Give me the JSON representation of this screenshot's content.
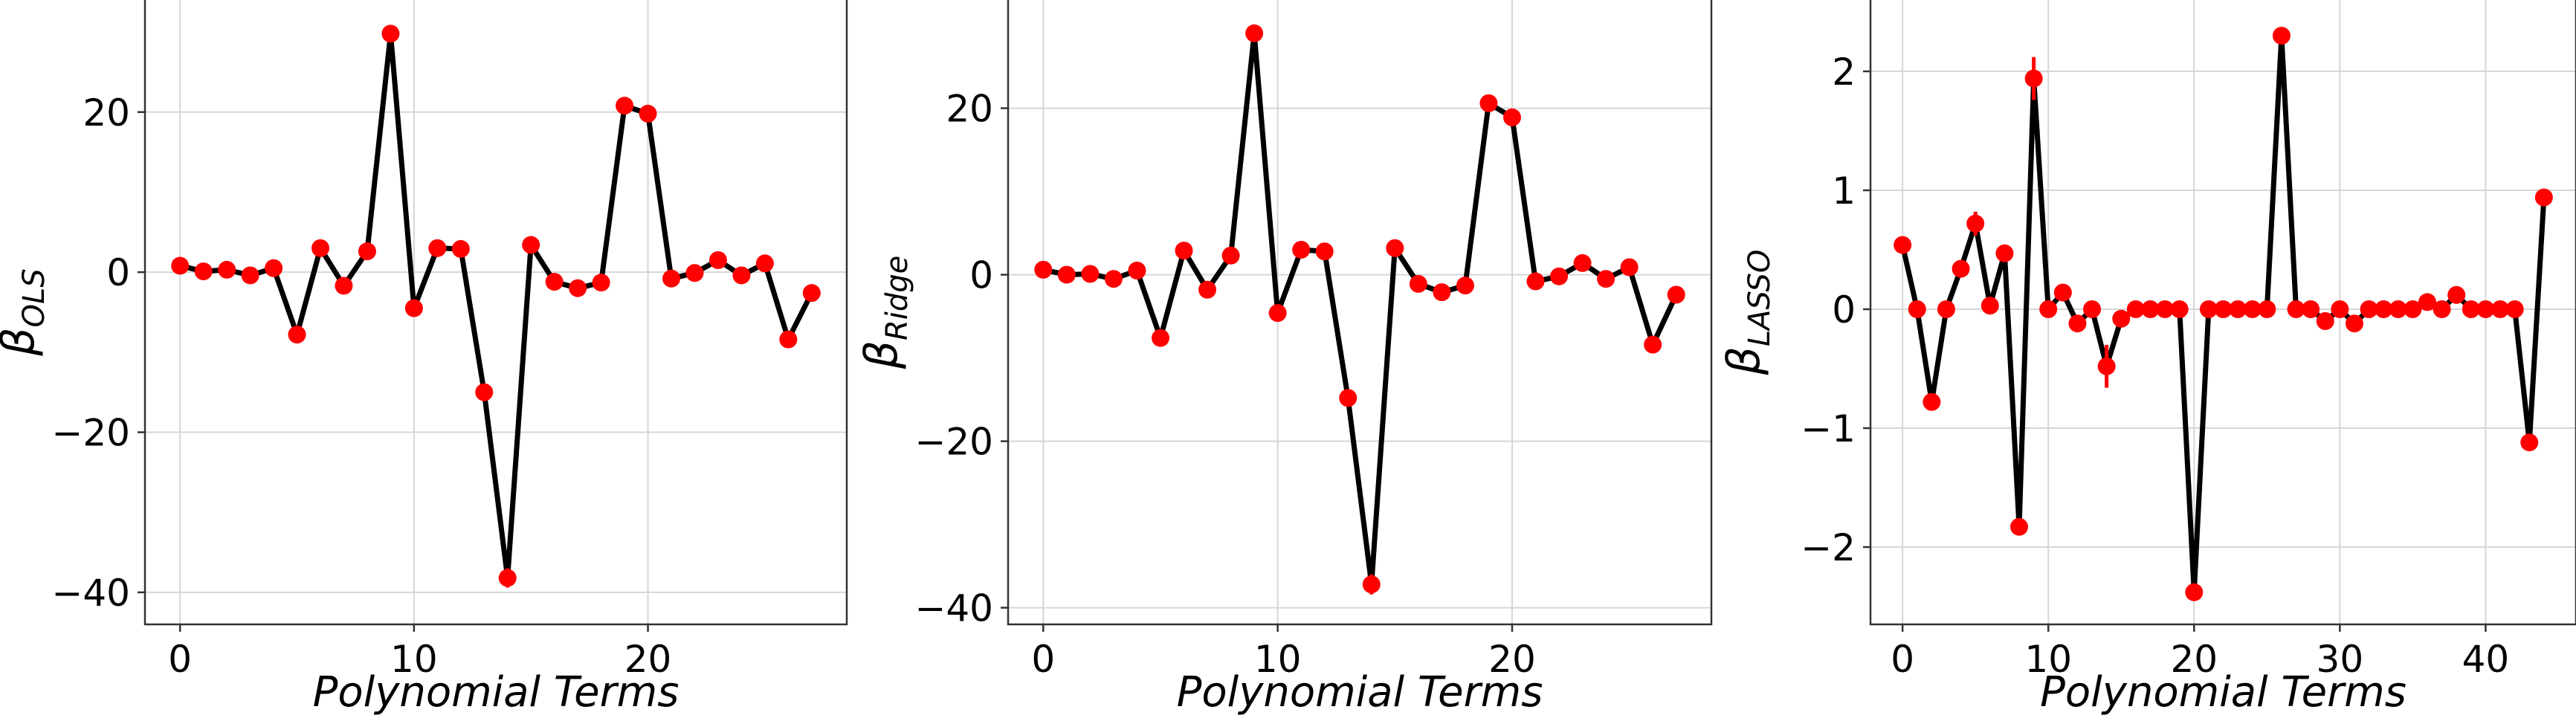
{
  "chart_data": [
    {
      "type": "line",
      "xlabel": "Polynomial Terms",
      "ylabel": {
        "base": "β",
        "sub": "OLS"
      },
      "xlim": [
        -1.5,
        28.5
      ],
      "ylim": [
        -44,
        34
      ],
      "xticks": [
        0,
        10,
        20
      ],
      "yticks": [
        -40,
        -20,
        0,
        20
      ],
      "tick_labels_x": [
        "0",
        "10",
        "20"
      ],
      "tick_labels_y": [
        "−40",
        "−20",
        "0",
        "20"
      ],
      "grid": true,
      "line_color": "#000000",
      "marker_color": "#ff0000",
      "series": [
        {
          "x": [
            0,
            1,
            2,
            3,
            4,
            5,
            6,
            7,
            8,
            9,
            10,
            11,
            12,
            13,
            14,
            15,
            16,
            17,
            18,
            19,
            20,
            21,
            22,
            23,
            24,
            25,
            26,
            27
          ],
          "values": [
            0.8,
            0.1,
            0.3,
            -0.4,
            0.5,
            -7.8,
            3.0,
            -1.7,
            2.6,
            29.8,
            -4.5,
            3.0,
            2.9,
            -15.0,
            -38.2,
            3.4,
            -1.2,
            -2.0,
            -1.3,
            20.8,
            19.8,
            -0.8,
            -0.1,
            1.5,
            -0.4,
            1.1,
            -8.4,
            -2.6
          ],
          "errors": [
            0,
            0,
            0,
            0,
            0,
            0,
            0,
            0,
            0,
            0,
            0.8,
            0,
            0,
            0,
            1.2,
            0,
            0,
            0,
            0,
            0,
            0,
            0,
            0,
            0,
            0,
            0,
            0,
            0
          ]
        }
      ]
    },
    {
      "type": "line",
      "xlabel": "Polynomial Terms",
      "ylabel": {
        "base": "β",
        "sub": "Ridge"
      },
      "xlim": [
        -1.5,
        28.5
      ],
      "ylim": [
        -42,
        33
      ],
      "xticks": [
        0,
        10,
        20
      ],
      "yticks": [
        -40,
        -20,
        0,
        20
      ],
      "tick_labels_x": [
        "0",
        "10",
        "20"
      ],
      "tick_labels_y": [
        "−40",
        "−20",
        "0",
        "20"
      ],
      "grid": true,
      "line_color": "#000000",
      "marker_color": "#ff0000",
      "series": [
        {
          "x": [
            0,
            1,
            2,
            3,
            4,
            5,
            6,
            7,
            8,
            9,
            10,
            11,
            12,
            13,
            14,
            15,
            16,
            17,
            18,
            19,
            20,
            21,
            22,
            23,
            24,
            25,
            26,
            27
          ],
          "values": [
            0.6,
            0,
            0.1,
            -0.5,
            0.5,
            -7.6,
            2.9,
            -1.8,
            2.3,
            29.0,
            -4.6,
            3.0,
            2.8,
            -14.8,
            -37.2,
            3.2,
            -1.1,
            -2.1,
            -1.3,
            20.6,
            18.9,
            -0.8,
            -0.2,
            1.4,
            -0.5,
            0.9,
            -8.4,
            -2.4
          ],
          "errors": [
            0,
            0,
            0,
            0,
            0,
            0,
            0,
            0,
            0,
            0,
            0.8,
            0,
            0,
            0,
            1.2,
            0,
            0,
            0,
            0,
            0,
            0,
            0,
            0,
            0,
            0,
            0,
            0,
            0
          ]
        }
      ]
    },
    {
      "type": "line",
      "xlabel": "Polynomial Terms",
      "ylabel": {
        "base": "β",
        "sub": "LASSO"
      },
      "xlim": [
        -2.2,
        46.2
      ],
      "ylim": [
        -2.65,
        2.6
      ],
      "xticks": [
        0,
        10,
        20,
        30,
        40
      ],
      "yticks": [
        -2,
        -1,
        0,
        1,
        2
      ],
      "tick_labels_x": [
        "0",
        "10",
        "20",
        "30",
        "40"
      ],
      "tick_labels_y": [
        "−2",
        "−1",
        "0",
        "1",
        "2"
      ],
      "grid": true,
      "line_color": "#000000",
      "marker_color": "#ff0000",
      "series": [
        {
          "x": [
            0,
            1,
            2,
            3,
            4,
            5,
            6,
            7,
            8,
            9,
            10,
            11,
            12,
            13,
            14,
            15,
            16,
            17,
            18,
            19,
            20,
            21,
            22,
            23,
            24,
            25,
            26,
            27,
            28,
            29,
            30,
            31,
            32,
            33,
            34,
            35,
            36,
            37,
            38,
            39,
            40,
            41,
            42,
            43,
            44
          ],
          "values": [
            0.54,
            0,
            -0.78,
            0,
            0.34,
            0.72,
            0.03,
            0.47,
            -1.83,
            1.94,
            0,
            0.14,
            -0.12,
            0,
            -0.48,
            -0.08,
            0,
            0,
            0,
            0,
            -2.38,
            0,
            0,
            0,
            0,
            0,
            2.3,
            0,
            0,
            -0.1,
            0,
            -0.12,
            0,
            0,
            0,
            0,
            0.06,
            0,
            0.12,
            0,
            0,
            0,
            0,
            -1.12,
            0.94
          ],
          "errors": [
            0,
            0,
            0,
            0,
            0,
            0.1,
            0,
            0.07,
            0,
            0.18,
            0,
            0,
            0,
            0,
            0.18,
            0,
            0,
            0,
            0,
            0,
            0,
            0,
            0,
            0,
            0,
            0,
            0,
            0,
            0,
            0,
            0,
            0,
            0,
            0,
            0,
            0,
            0,
            0,
            0,
            0,
            0,
            0,
            0,
            0,
            0
          ]
        }
      ]
    }
  ]
}
